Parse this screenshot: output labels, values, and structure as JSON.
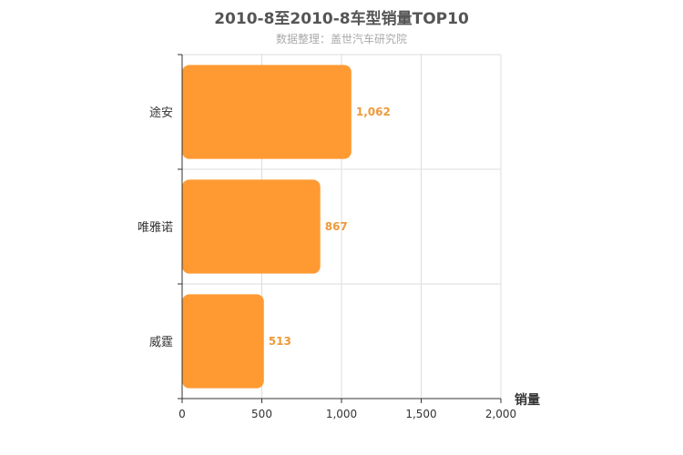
{
  "chart_data": {
    "type": "bar",
    "orientation": "horizontal",
    "title": "2010-8至2010-8车型销量TOP10",
    "subtitle": "数据整理：盖世汽车研究院",
    "categories": [
      "途安",
      "唯雅诺",
      "威霆"
    ],
    "values": [
      1062,
      867,
      513
    ],
    "value_labels": [
      "1,062",
      "867",
      "513"
    ],
    "xlabel": "销量",
    "ylabel": "",
    "xlim": [
      0,
      2000
    ],
    "x_ticks": [
      0,
      500,
      1000,
      1500,
      2000
    ],
    "x_tick_labels": [
      "0",
      "500",
      "1,000",
      "1,500",
      "2,000"
    ],
    "grid": true,
    "legend": "none",
    "bar_color": "#ff9a33",
    "label_color": "#ee9a3a"
  }
}
